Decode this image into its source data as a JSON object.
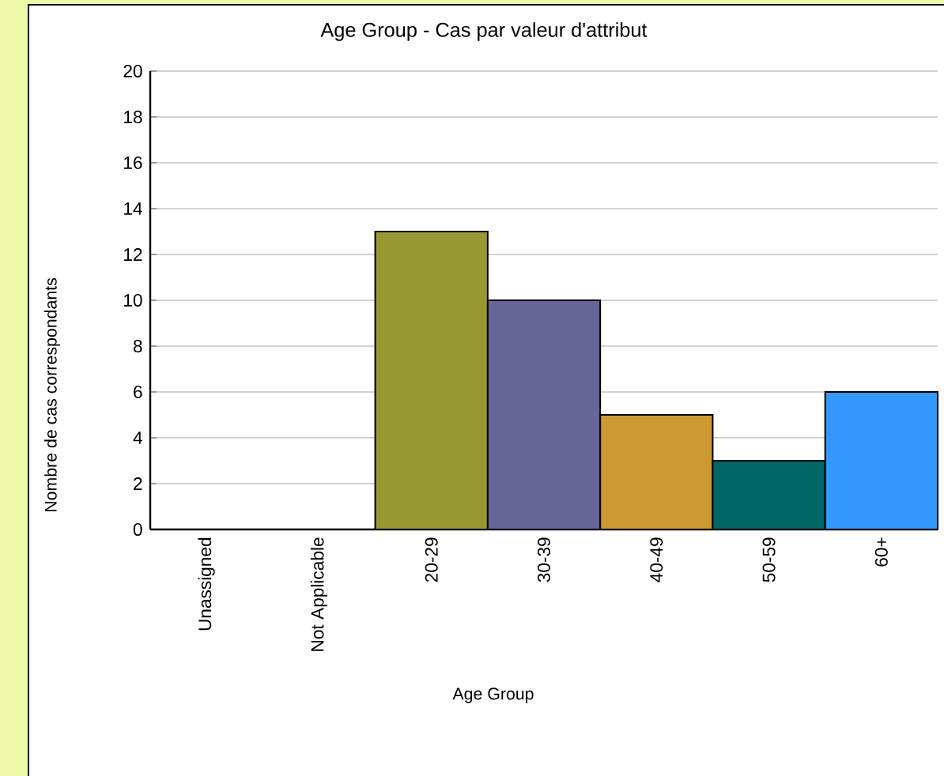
{
  "chart_data": {
    "type": "bar",
    "title": "Age Group - Cas par valeur d'attribut",
    "xlabel": "Age Group",
    "ylabel": "Nombre de cas correspondants",
    "categories": [
      "Unassigned",
      "Not Applicable",
      "20-29",
      "30-39",
      "40-49",
      "50-59",
      "60+"
    ],
    "values": [
      0,
      0,
      13,
      10,
      5,
      3,
      6
    ],
    "colors": [
      null,
      null,
      "#999933",
      "#666699",
      "#cc9933",
      "#006666",
      "#3399ff"
    ],
    "ylim": [
      0,
      20
    ],
    "yticks": [
      0,
      2,
      4,
      6,
      8,
      10,
      12,
      14,
      16,
      18,
      20
    ],
    "grid": "y"
  }
}
